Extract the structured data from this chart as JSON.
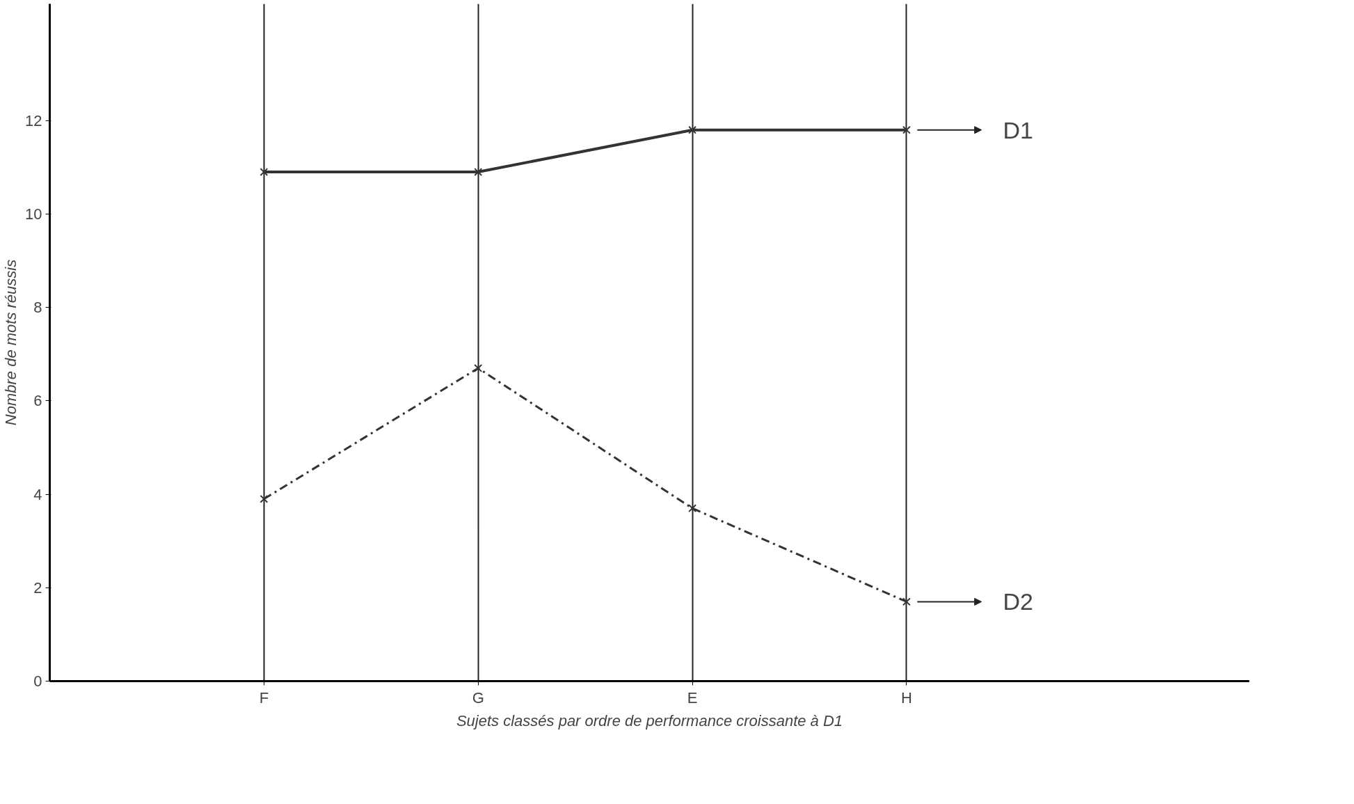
{
  "chart_data": {
    "type": "line",
    "xlabel": "Sujets classés par ordre de performance croissante à D1",
    "ylabel": "Nombre de mots réussis",
    "categories": [
      "F",
      "G",
      "E",
      "H"
    ],
    "series": [
      {
        "name": "D1",
        "color": "#333333",
        "values": [
          10.9,
          10.9,
          11.8,
          11.8
        ],
        "line_style": "solid"
      },
      {
        "name": "D2",
        "color": "#333333",
        "values": [
          3.9,
          6.7,
          3.7,
          1.7
        ],
        "line_style": "dashed"
      }
    ],
    "ylim": [
      0,
      14.5
    ],
    "yticks": [
      0,
      2,
      4,
      6,
      8,
      10,
      12
    ],
    "grid": "x",
    "marker": "cross",
    "legend": "right"
  }
}
